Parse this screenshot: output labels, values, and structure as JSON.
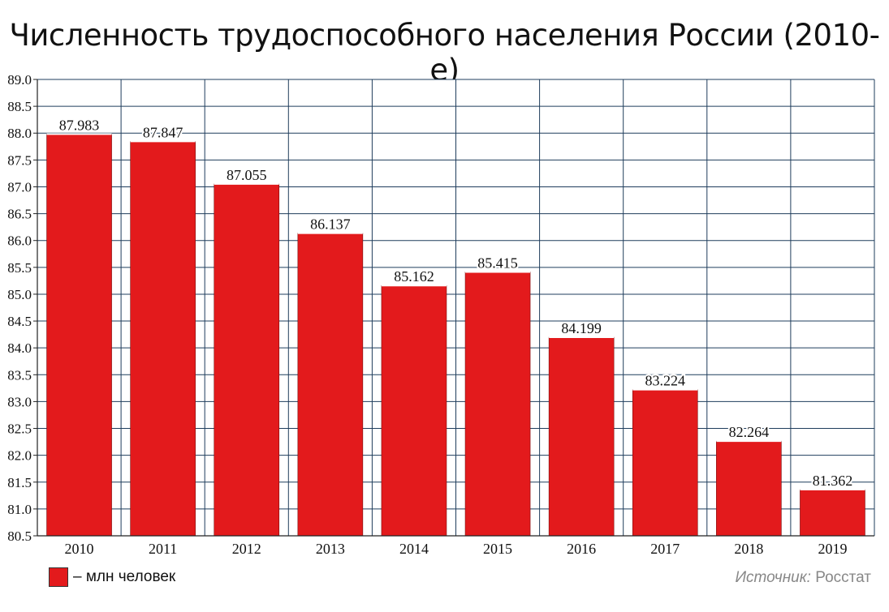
{
  "chart_data": {
    "type": "bar",
    "title": "Численность трудоспособного населения России (2010-е)",
    "categories": [
      "2010",
      "2011",
      "2012",
      "2013",
      "2014",
      "2015",
      "2016",
      "2017",
      "2018",
      "2019"
    ],
    "values": [
      87.983,
      87.847,
      87.055,
      86.137,
      85.162,
      85.415,
      84.199,
      83.224,
      82.264,
      81.362
    ],
    "value_labels": [
      "87.983",
      "87.847",
      "87.055",
      "86.137",
      "85.162",
      "85.415",
      "84.199",
      "83.224",
      "82.264",
      "81.362"
    ],
    "ylim": [
      80.5,
      89.0
    ],
    "yticks": [
      "80.5",
      "81.0",
      "81.5",
      "82.0",
      "82.5",
      "83.0",
      "83.5",
      "84.0",
      "84.5",
      "85.0",
      "85.5",
      "86.0",
      "86.5",
      "87.0",
      "87.5",
      "88.0",
      "88.5",
      "89.0"
    ],
    "grid": true,
    "bar_color": "#e31a1c",
    "grid_color": "#1f3d5c",
    "legend": {
      "label": "– млн человек",
      "placement": "bottom-left"
    }
  },
  "source": {
    "label": "Источник:",
    "value": "Росстат"
  }
}
